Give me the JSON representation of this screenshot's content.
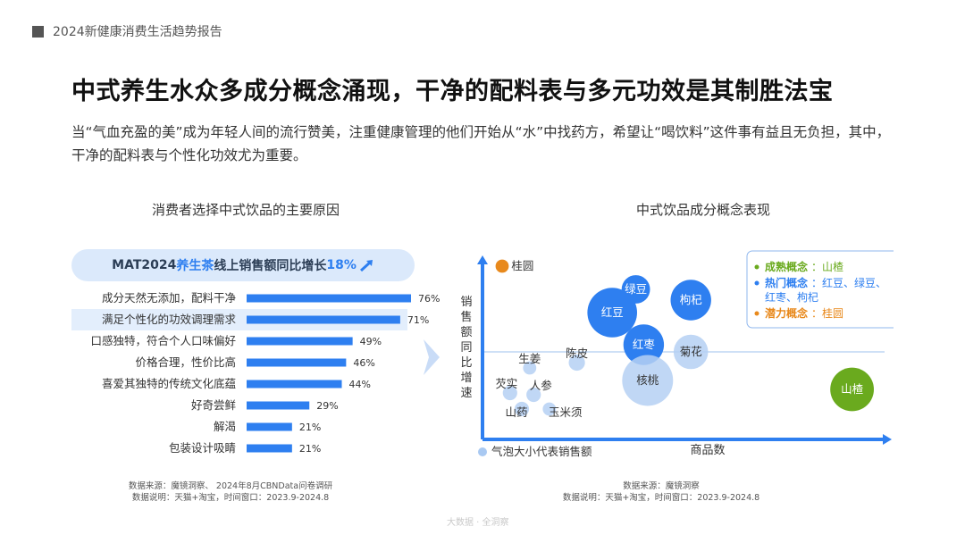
{
  "header": {
    "report_title": "2024新健康消费生活趋势报告"
  },
  "page_title": "中式养生水众多成分概念涌现，干净的配料表与多元功效是其制胜法宝",
  "description": "当“气血充盈的美”成为年轻人间的流行赞美，注重健康管理的他们开始从“水”中找药方，希望让“喝饮料”这件事有益且无负担，其中，干净的配料表与个性化功效尤为重要。",
  "left_panel": {
    "subtitle": "消费者选择中式饮品的主要原因",
    "pill": {
      "prefix": "MAT2024",
      "highlight": "养生茶",
      "middle": "线上销售额同比增长",
      "growth": "18%"
    },
    "source_line1": "数据来源：魔镜洞察、 2024年8月CBNData问卷调研",
    "source_line2": "数据说明：天猫+淘宝，时间窗口：2023.9-2024.8"
  },
  "right_panel": {
    "subtitle": "中式饮品成分概念表现",
    "source_line1": "数据来源：魔镜洞察",
    "source_line2": "数据说明：天猫+淘宝，时间窗口：2023.9-2024.8"
  },
  "footer": {
    "faint_text": "大数据 · 全洞察"
  },
  "colors": {
    "accent": "#2e7ff0",
    "bar": "#2e7ff0",
    "mature": "#6aaa1e",
    "potential": "#e8891c",
    "hot": "#2e7ff0"
  },
  "chart_data": [
    {
      "type": "bar",
      "orientation": "horizontal",
      "title": "消费者选择中式饮品的主要原因",
      "categories": [
        "成分天然无添加，配料干净",
        "满足个性化的功效调理需求",
        "口感独特，符合个人口味偏好",
        "价格合理，性价比高",
        "喜爱其独特的传统文化底蕴",
        "好奇尝鲜",
        "解渴",
        "包装设计吸睛"
      ],
      "values": [
        76,
        71,
        49,
        46,
        44,
        29,
        21,
        21
      ],
      "unit": "%",
      "highlighted_category": "满足个性化的功效调理需求"
    },
    {
      "type": "scatter",
      "subtype": "bubble",
      "title": "中式饮品成分概念表现",
      "xlabel": "商品数",
      "ylabel": "销售额同比增速",
      "size_legend": "气泡大小代表销售额",
      "grid": false,
      "legend_position": "top-right",
      "legend": [
        {
          "label": "成熟概念",
          "items": "山楂",
          "color": "#6aaa1e"
        },
        {
          "label": "热门概念",
          "items": "红豆、绿豆、红枣、枸杞",
          "color": "#2e7ff0"
        },
        {
          "label": "潜力概念",
          "items": "桂圆",
          "color": "#e8891c"
        }
      ],
      "points": [
        {
          "name": "桂圆",
          "category": "潜力概念",
          "relative_x": 0.05,
          "relative_y": 0.97,
          "relative_size": 0.1
        },
        {
          "name": "绿豆",
          "category": "热门概念",
          "relative_x": 0.39,
          "relative_y": 0.84,
          "relative_size": 0.35
        },
        {
          "name": "枸杞",
          "category": "热门概念",
          "relative_x": 0.53,
          "relative_y": 0.78,
          "relative_size": 0.55
        },
        {
          "name": "红豆",
          "category": "热门概念",
          "relative_x": 0.33,
          "relative_y": 0.71,
          "relative_size": 0.7
        },
        {
          "name": "红枣",
          "category": "热门概念",
          "relative_x": 0.41,
          "relative_y": 0.53,
          "relative_size": 0.55
        },
        {
          "name": "菊花",
          "category": "其他",
          "relative_x": 0.53,
          "relative_y": 0.49,
          "relative_size": 0.45
        },
        {
          "name": "核桃",
          "category": "其他",
          "relative_x": 0.42,
          "relative_y": 0.33,
          "relative_size": 0.72
        },
        {
          "name": "山楂",
          "category": "成熟概念",
          "relative_x": 0.94,
          "relative_y": 0.28,
          "relative_size": 0.6
        },
        {
          "name": "陈皮",
          "category": "其他",
          "relative_x": 0.24,
          "relative_y": 0.43,
          "relative_size": 0.15
        },
        {
          "name": "生姜",
          "category": "其他",
          "relative_x": 0.12,
          "relative_y": 0.4,
          "relative_size": 0.1
        },
        {
          "name": "芡实",
          "category": "其他",
          "relative_x": 0.07,
          "relative_y": 0.26,
          "relative_size": 0.12
        },
        {
          "name": "人参",
          "category": "其他",
          "relative_x": 0.13,
          "relative_y": 0.25,
          "relative_size": 0.12
        },
        {
          "name": "山药",
          "category": "其他",
          "relative_x": 0.1,
          "relative_y": 0.17,
          "relative_size": 0.12
        },
        {
          "name": "玉米须",
          "category": "其他",
          "relative_x": 0.17,
          "relative_y": 0.17,
          "relative_size": 0.1
        }
      ]
    }
  ]
}
